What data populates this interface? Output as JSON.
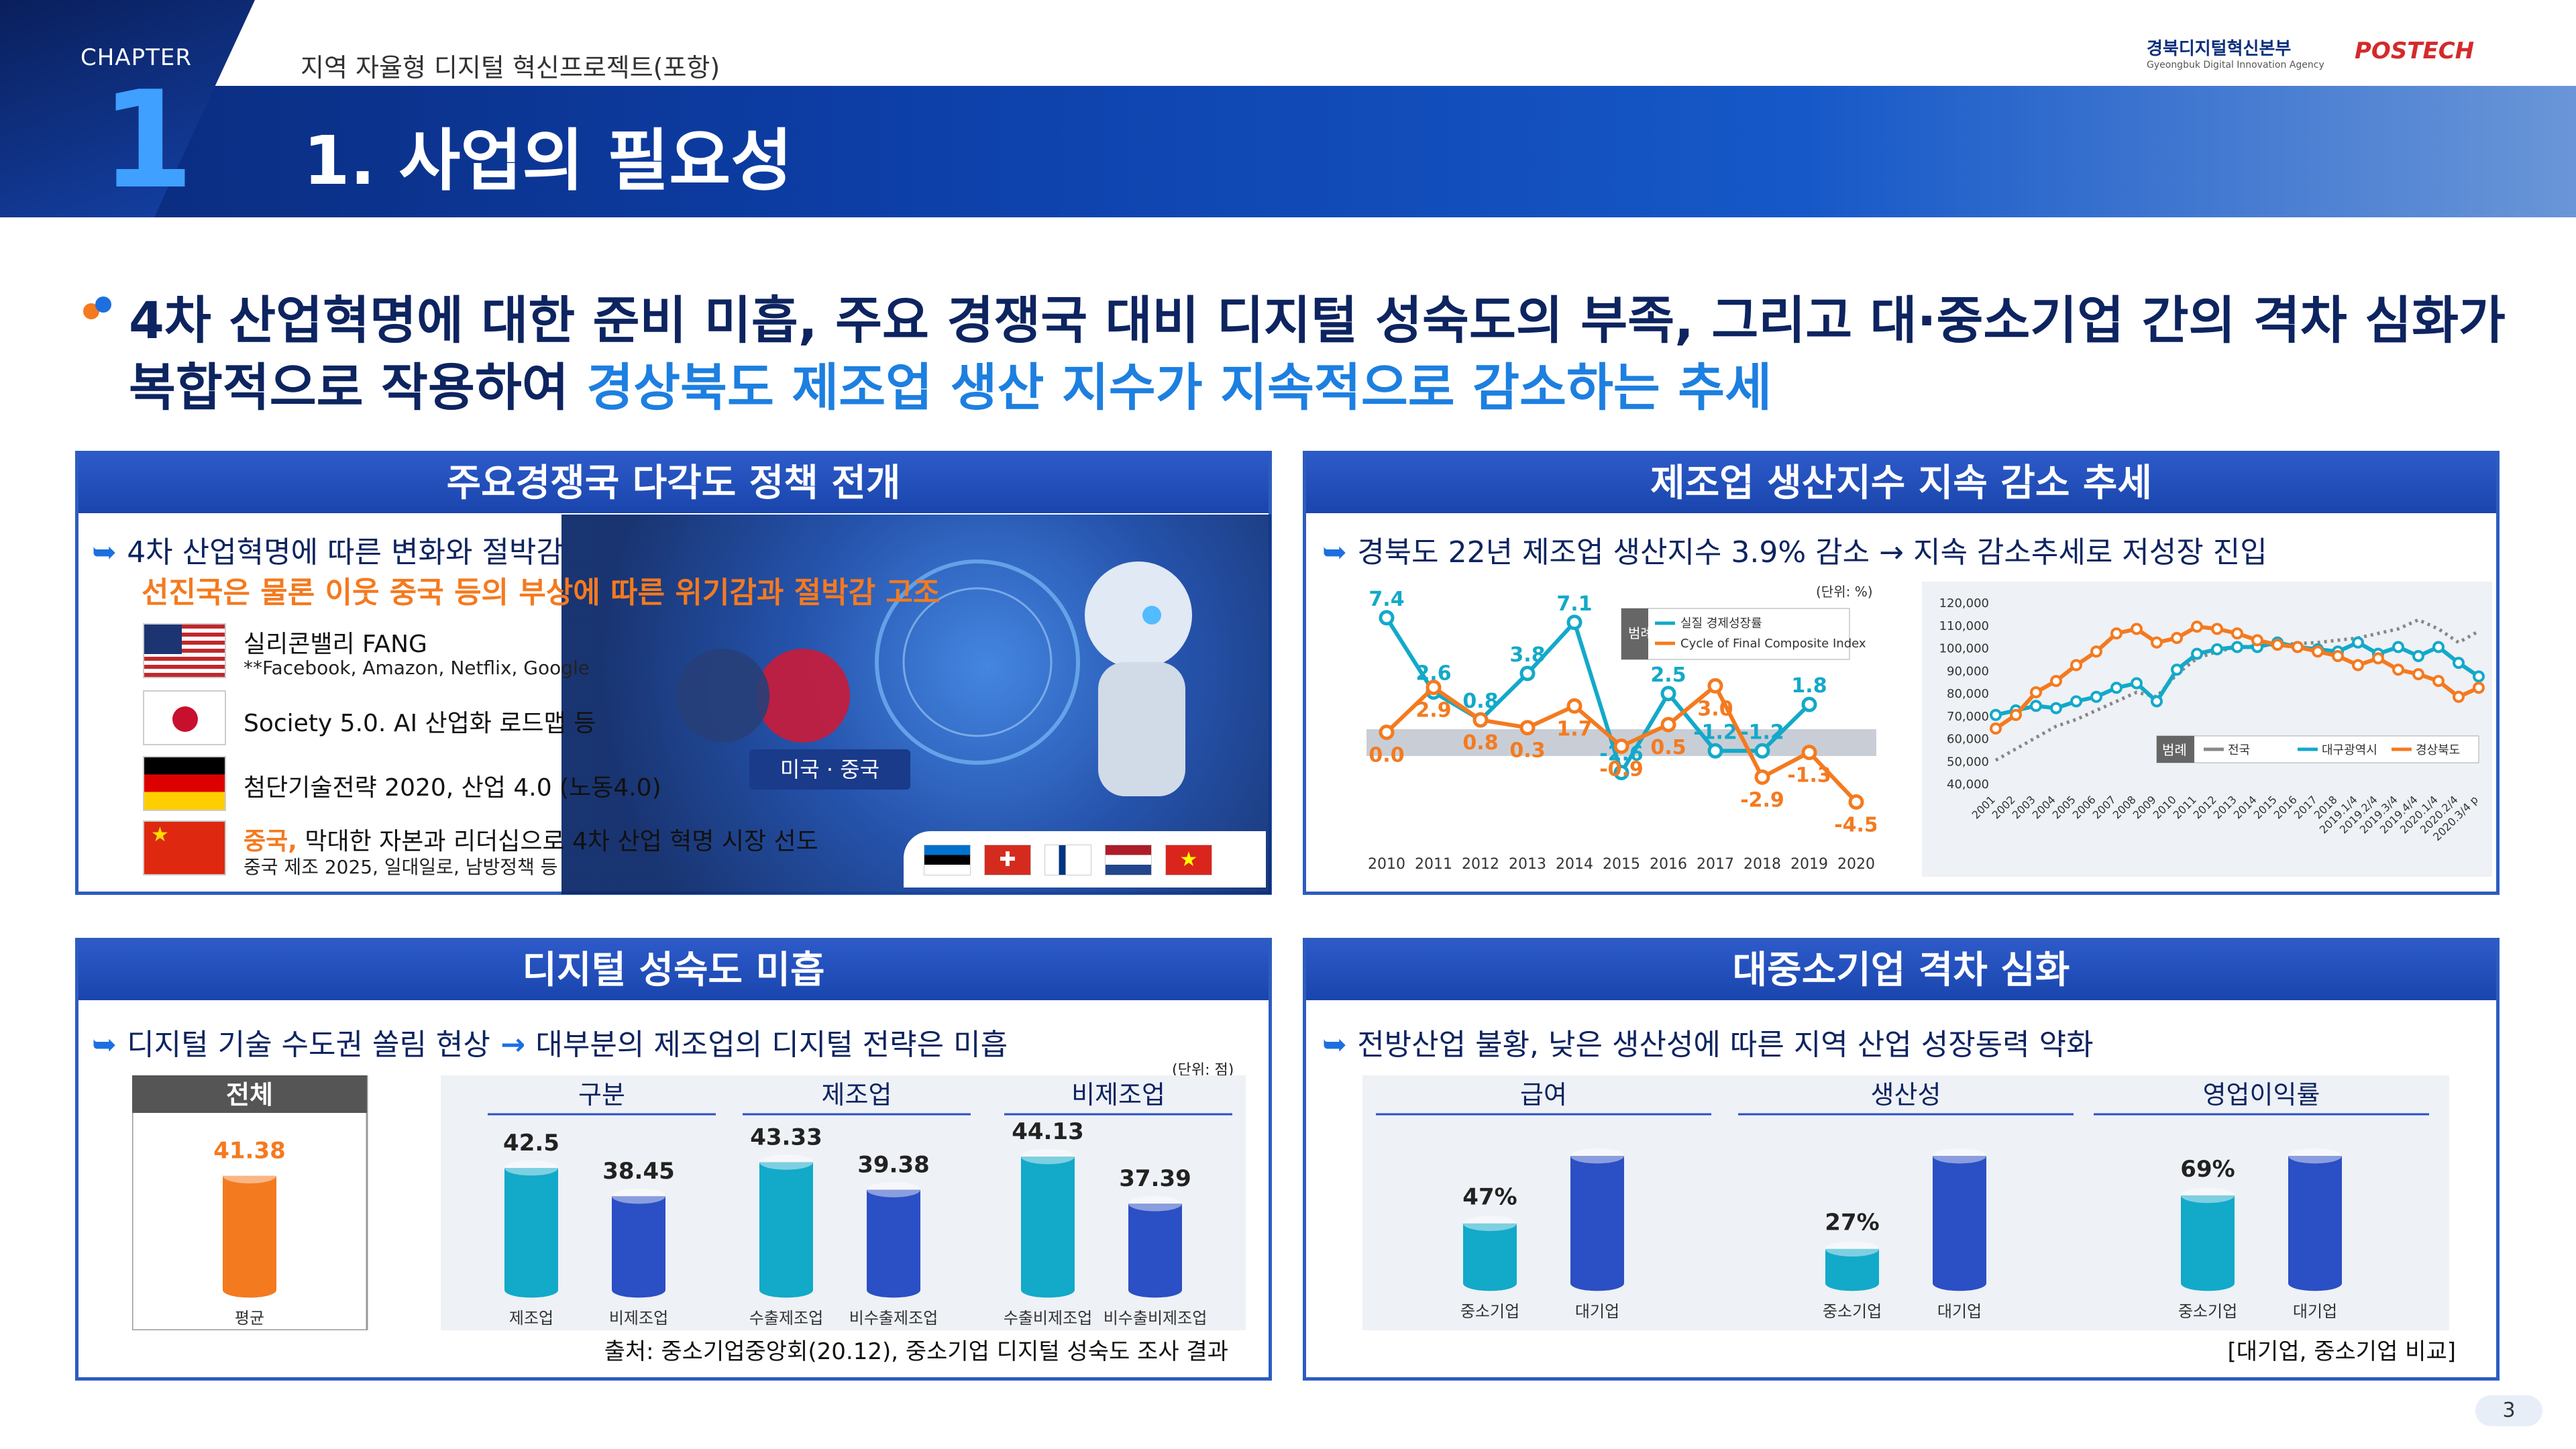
{
  "header": {
    "chapter_label": "CHAPTER",
    "chapter_num": "1",
    "project_title": "지역 자율형 디지털 혁신프로젝트(포항)",
    "page_title": "1. 사업의 필요성",
    "logo1": "경북디지털혁신본부",
    "logo1_sub": "Gyeongbuk Digital Innovation Agency",
    "logo2": "POSTECH"
  },
  "headline": {
    "line1": "4차 산업혁명에 대한 준비 미흡, 주요 경쟁국 대비 디지털 성숙도의 부족, 그리고 대·중소기업 간의 격차 심화가",
    "line2_plain": "복합적으로 작용하여 ",
    "line2_highlight": "경상북도 제조업 생산 지수가 지속적으로 감소하는 추세"
  },
  "colors": {
    "navy": "#0d2460",
    "accent": "#1d7fe0",
    "orange": "#f47a1f",
    "teal": "#13a9c9",
    "blue": "#2b4fc4"
  },
  "p1": {
    "title": "주요경쟁국 다각도 정책 전개",
    "sub1": "4차 산업혁명에 따른 변화와 절박감",
    "sub2": "선진국은 물론 이웃 중국 등의 부상에 따른 위기감과 절박감 고조",
    "rows": [
      {
        "flag": "us-flag",
        "text": "실리콘밸리 FANG",
        "note": "**Facebook, Amazon, Netflix, Google"
      },
      {
        "flag": "jp-flag",
        "text": "Society 5.0. AI 산업화 로드맵 등",
        "note": ""
      },
      {
        "flag": "de-flag",
        "text": "첨단기술전략 2020, 산업 4.0 (노동4.0)",
        "note": ""
      },
      {
        "flag": "cn-flag",
        "text_hl": "중국,",
        "text": " 막대한 자본과 리더십으로 4차 산업 혁명 시장 선도",
        "note": "중국 제조 2025, 일대일로, 남방정책 등"
      }
    ],
    "vs_label": "미국 · 중국"
  },
  "p2": {
    "title": "제조업 생산지수 지속 감소 추세",
    "sub": "경북도 22년 제조업 생산지수 3.9% 감소 → 지속 감소추세로 저성장 진입",
    "unit": "(단위: %)",
    "legend_title": "범례",
    "legend": [
      "실질 경제성장률",
      "Cycle of Final Composite Index"
    ],
    "legend2": [
      "전국",
      "대구광역시",
      "경상북도"
    ]
  },
  "chart_data": [
    {
      "type": "line",
      "x": [
        "2010",
        "2011",
        "2012",
        "2013",
        "2014",
        "2015",
        "2016",
        "2017",
        "2018",
        "2019",
        "2020"
      ],
      "series": [
        {
          "name": "실질 경제성장률",
          "values": [
            7.4,
            2.6,
            0.8,
            3.8,
            7.1,
            -2.6,
            2.5,
            -1.2,
            -1.2,
            1.8,
            null
          ],
          "labels": [
            "7.4",
            "2.6",
            "0.8",
            "3.8",
            "7.1",
            "-2.6",
            "2.5",
            "-1.2",
            "-1.2",
            "1.8",
            ""
          ]
        },
        {
          "name": "Cycle of Final Composite Index",
          "values": [
            0.0,
            2.9,
            0.8,
            0.3,
            1.7,
            -0.9,
            0.5,
            3.0,
            -2.9,
            -1.3,
            -4.5
          ],
          "labels": [
            "0.0",
            "2.9",
            "0.8",
            "0.3",
            "1.7",
            "-0.9",
            "0.5",
            "3.0",
            "-2.9",
            "-1.3",
            "-4.5"
          ]
        }
      ]
    },
    {
      "type": "line",
      "x": [
        "2001",
        "2002",
        "2003",
        "2004",
        "2005",
        "2006",
        "2007",
        "2008",
        "2009",
        "2010",
        "2011",
        "2012",
        "2013",
        "2014",
        "2015",
        "2016",
        "2017",
        "2018",
        "2019.1/4",
        "2019.2/4",
        "2019.3/4",
        "2019.4/4",
        "2020.1/4",
        "2020.2/4",
        "2020.3/4 p"
      ],
      "yticks": [
        "120,000",
        "110,000",
        "100,000",
        "90,000",
        "80,000",
        "70,000",
        "60,000",
        "50,000",
        "40,000"
      ],
      "ylim": [
        40000,
        120000
      ],
      "series": [
        {
          "name": "전국",
          "values": [
            50000,
            55000,
            60000,
            65000,
            68000,
            72000,
            76000,
            80000,
            78000,
            88000,
            95000,
            98000,
            100000,
            100500,
            101000,
            101500,
            102000,
            103000,
            104000,
            106000,
            108000,
            112000,
            108000,
            102000,
            107000
          ]
        },
        {
          "name": "대구광역시",
          "values": [
            70000,
            72000,
            74000,
            73000,
            76000,
            78000,
            82000,
            84000,
            76000,
            90000,
            97000,
            99000,
            100000,
            100000,
            102000,
            100000,
            99000,
            98000,
            102000,
            97000,
            100000,
            96000,
            100000,
            93000,
            87000
          ]
        },
        {
          "name": "경상북도",
          "values": [
            64000,
            70000,
            80000,
            85000,
            92000,
            98000,
            106000,
            108000,
            102000,
            104000,
            109000,
            108000,
            106000,
            103000,
            101000,
            100000,
            98000,
            96000,
            92000,
            95000,
            90000,
            88000,
            85000,
            78000,
            82000
          ]
        }
      ]
    },
    {
      "type": "bar",
      "name": "디지털 성숙도",
      "unit": "(단위: 점)",
      "groups": [
        {
          "name": "전체",
          "categories": [
            "평균"
          ],
          "values": [
            41.38
          ]
        },
        {
          "name": "구분",
          "categories": [
            "제조업",
            "비제조업"
          ],
          "values": [
            42.5,
            38.45
          ]
        },
        {
          "name": "제조업",
          "categories": [
            "수출제조업",
            "비수출제조업"
          ],
          "values": [
            43.33,
            39.38
          ]
        },
        {
          "name": "비제조업",
          "categories": [
            "수출비제조업",
            "비수출비제조업"
          ],
          "values": [
            44.13,
            37.39
          ]
        }
      ],
      "ylim": [
        0,
        50
      ]
    },
    {
      "type": "bar",
      "name": "대중소기업 격차",
      "groups": [
        {
          "name": "급여",
          "categories": [
            "중소기업",
            "대기업"
          ],
          "values": [
            47,
            100
          ]
        },
        {
          "name": "생산성",
          "categories": [
            "중소기업",
            "대기업"
          ],
          "values": [
            27,
            100
          ]
        },
        {
          "name": "영업이익률",
          "categories": [
            "중소기업",
            "대기업"
          ],
          "values": [
            69,
            100
          ]
        }
      ],
      "ylim": [
        0,
        100
      ]
    }
  ],
  "p3": {
    "title": "디지털 성숙도 미흡",
    "sub_a": "디지털 기술 수도권 쏠림 현상",
    "sub_b": "대부분의 제조업의 디지털 전략은 미흡",
    "unit": "(단위: 점)",
    "source": "출처: 중소기업중앙회(20.12), 중소기업 디지털 성숙도 조사 결과"
  },
  "p4": {
    "title": "대중소기업 격차 심화",
    "sub": "전방산업 불황, 낮은 생산성에 따른 지역 산업 성장동력 약화",
    "note": "[대기업, 중소기업 비교]",
    "labels": [
      "47%",
      "27%",
      "69%"
    ]
  },
  "page_number": "3"
}
